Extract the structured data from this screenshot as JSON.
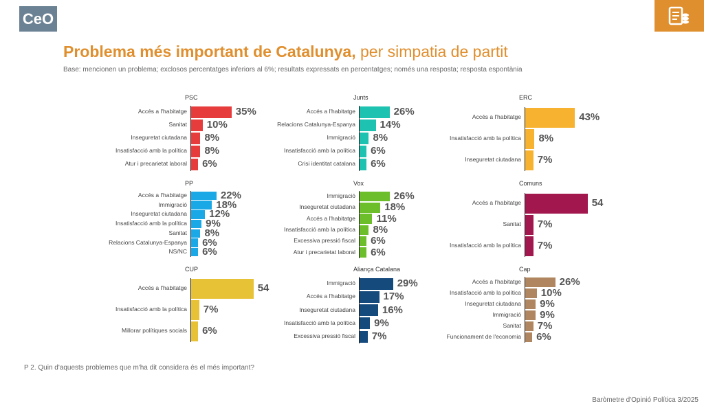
{
  "header": {
    "logo_text": "CeO",
    "icon": "database-document-icon",
    "accent": "#e08f2e"
  },
  "title_bold": "Problema més important de Catalunya,",
  "title_rest": " per simpatia de partit",
  "subtitle": "Base: mencionen un problema; exclosos percentatges inferiors al 6%; resultats expressats en percentatges; només una resposta; resposta espontània",
  "question": "P 2. Quin d'aquests problemes que m'ha dit considera és el més important?",
  "source": "Baròmetre d'Opinió Política 3/2025",
  "chart_data": [
    {
      "type": "bar",
      "title": "PSC",
      "color": "#e63c3c",
      "categories": [
        "Accés a l'habitatge",
        "Sanitat",
        "Inseguretat ciutadana",
        "Insatisfacció amb la política",
        "Atur i precarietat laboral"
      ],
      "values": [
        35,
        10,
        8,
        8,
        6
      ],
      "labels": [
        "35%",
        "10%",
        "8%",
        "8%",
        "6%"
      ]
    },
    {
      "type": "bar",
      "title": "Junts",
      "color": "#1ec2b0",
      "categories": [
        "Accés a l'habitatge",
        "Relacions Catalunya-Espanya",
        "Immigració",
        "Insatisfacció amb la política",
        "Crisi identitat catalana"
      ],
      "values": [
        26,
        14,
        8,
        6,
        6
      ],
      "labels": [
        "26%",
        "14%",
        "8%",
        "6%",
        "6%"
      ]
    },
    {
      "type": "bar",
      "title": "ERC",
      "color": "#f7b230",
      "categories": [
        "Accés a l'habitatge",
        "Insatisfacció amb la política",
        "Inseguretat ciutadana"
      ],
      "values": [
        43,
        8,
        7
      ],
      "labels": [
        "43%",
        "8%",
        "7%"
      ]
    },
    {
      "type": "bar",
      "title": "PP",
      "color": "#1ba8e6",
      "categories": [
        "Accés a l'habitatge",
        "Immigració",
        "Inseguretat ciutadana",
        "Insatisfacció amb la política",
        "Sanitat",
        "Relacions Catalunya-Espanya",
        "NS/NC"
      ],
      "values": [
        22,
        18,
        12,
        9,
        8,
        6,
        6
      ],
      "labels": [
        "22%",
        "18%",
        "12%",
        "9%",
        "8%",
        "6%",
        "6%"
      ]
    },
    {
      "type": "bar",
      "title": "Vox",
      "color": "#6cbf2a",
      "categories": [
        "Immigració",
        "Inseguretat ciutadana",
        "Accés a l'habitatge",
        "Insatisfacció amb la política",
        "Excessiva pressió fiscal",
        "Atur i precarietat laboral"
      ],
      "values": [
        26,
        18,
        11,
        8,
        6,
        6
      ],
      "labels": [
        "26%",
        "18%",
        "11%",
        "8%",
        "6%",
        "6%"
      ]
    },
    {
      "type": "bar",
      "title": "Comuns",
      "color": "#a3174f",
      "categories": [
        "Accés a l'habitatge",
        "Sanitat",
        "Insatisfacció amb la política"
      ],
      "values": [
        54,
        7,
        7
      ],
      "labels": [
        "54",
        "7%",
        "7%"
      ]
    },
    {
      "type": "bar",
      "title": "CUP",
      "color": "#e8c236",
      "categories": [
        "Accés a l'habitatge",
        "Insatisfacció amb la política",
        "Millorar polítiques socials"
      ],
      "values": [
        54,
        7,
        6
      ],
      "labels": [
        "54",
        "7%",
        "6%"
      ]
    },
    {
      "type": "bar",
      "title": "Aliança Catalana",
      "color": "#154a7d",
      "categories": [
        "Immigració",
        "Accés a l'habitatge",
        "Inseguretat ciutadana",
        "Insatisfacció amb la política",
        "Excessiva pressió fiscal"
      ],
      "values": [
        29,
        17,
        16,
        9,
        7
      ],
      "labels": [
        "29%",
        "17%",
        "16%",
        "9%",
        "7%"
      ]
    },
    {
      "type": "bar",
      "title": "Cap",
      "color": "#b08660",
      "categories": [
        "Accés a l'habitatge",
        "Insatisfacció amb la política",
        "Inseguretat ciutadana",
        "Immigració",
        "Sanitat",
        "Funcionament de l'economia"
      ],
      "values": [
        26,
        10,
        9,
        9,
        7,
        6
      ],
      "labels": [
        "26%",
        "10%",
        "9%",
        "9%",
        "7%",
        "6%"
      ]
    }
  ]
}
